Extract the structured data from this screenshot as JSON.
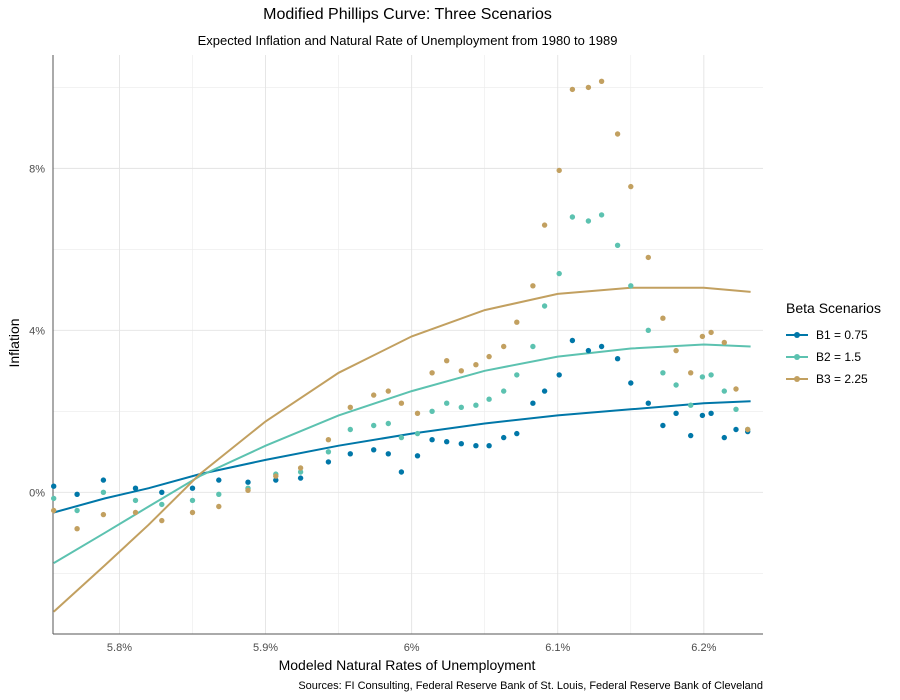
{
  "chart_data": {
    "type": "scatter",
    "title": "Modified Phillips Curve: Three Scenarios",
    "subtitle": "Expected Inflation and Natural Rate of Unemployment from 1980 to 1989",
    "xlabel": "Modeled Natural Rates of Unemployment",
    "ylabel": "Inflation",
    "caption": "Sources: FI Consulting, Federal Reserve Bank of St. Louis, Federal Reserve Bank of Cleveland",
    "xlim": [
      5.7545,
      6.2405
    ],
    "ylim": [
      -3.5,
      10.8
    ],
    "x_ticks": [
      5.8,
      5.9,
      6.0,
      6.1,
      6.2
    ],
    "x_tick_labels": [
      "5.8%",
      "5.9%",
      "6%",
      "6.1%",
      "6.2%"
    ],
    "y_ticks": [
      0,
      4,
      8
    ],
    "y_tick_labels": [
      "0%",
      "4%",
      "8%"
    ],
    "grid": true,
    "legend": {
      "title": "Beta Scenarios",
      "position": "right"
    },
    "x": [
      5.755,
      5.775,
      5.795,
      5.815,
      5.835,
      5.855,
      5.875,
      5.895,
      5.915,
      5.935,
      5.955,
      5.975,
      5.995,
      6.005,
      6.015,
      6.025,
      6.035,
      6.045,
      6.055,
      6.065,
      6.075,
      6.085,
      6.095,
      6.105,
      6.115,
      6.125,
      6.135,
      6.145,
      6.155,
      6.165,
      6.175,
      6.185,
      6.195,
      6.205,
      6.215,
      6.225,
      6.232
    ],
    "series": [
      {
        "name": "B1 = 0.75",
        "color": "#0077a8",
        "points": [
          [
            5.755,
            0.15
          ],
          [
            5.771,
            -0.05
          ],
          [
            5.789,
            0.3
          ],
          [
            5.811,
            0.1
          ],
          [
            5.829,
            0.0
          ],
          [
            5.85,
            0.1
          ],
          [
            5.868,
            0.3
          ],
          [
            5.888,
            0.25
          ],
          [
            5.907,
            0.3
          ],
          [
            5.924,
            0.35
          ],
          [
            5.943,
            0.75
          ],
          [
            5.958,
            0.95
          ],
          [
            5.974,
            1.05
          ],
          [
            5.984,
            0.95
          ],
          [
            5.993,
            0.5
          ],
          [
            6.004,
            0.9
          ],
          [
            6.014,
            1.3
          ],
          [
            6.024,
            1.25
          ],
          [
            6.034,
            1.2
          ],
          [
            6.044,
            1.15
          ],
          [
            6.053,
            1.15
          ],
          [
            6.063,
            1.35
          ],
          [
            6.072,
            1.45
          ],
          [
            6.083,
            2.2
          ],
          [
            6.091,
            2.5
          ],
          [
            6.101,
            2.9
          ],
          [
            6.11,
            3.75
          ],
          [
            6.121,
            3.5
          ],
          [
            6.13,
            3.6
          ],
          [
            6.141,
            3.3
          ],
          [
            6.15,
            2.7
          ],
          [
            6.162,
            2.2
          ],
          [
            6.172,
            1.65
          ],
          [
            6.181,
            1.95
          ],
          [
            6.191,
            1.4
          ],
          [
            6.199,
            1.9
          ],
          [
            6.205,
            1.95
          ],
          [
            6.214,
            1.35
          ],
          [
            6.222,
            1.55
          ],
          [
            6.23,
            1.5
          ]
        ],
        "fit": [
          [
            5.755,
            -0.5
          ],
          [
            5.79,
            -0.15
          ],
          [
            5.82,
            0.1
          ],
          [
            5.855,
            0.45
          ],
          [
            5.9,
            0.8
          ],
          [
            5.95,
            1.15
          ],
          [
            6.0,
            1.45
          ],
          [
            6.05,
            1.7
          ],
          [
            6.1,
            1.9
          ],
          [
            6.15,
            2.05
          ],
          [
            6.2,
            2.2
          ],
          [
            6.232,
            2.25
          ]
        ]
      },
      {
        "name": "B2 = 1.5",
        "color": "#5cc2b0",
        "points": [
          [
            5.755,
            -0.15
          ],
          [
            5.771,
            -0.45
          ],
          [
            5.789,
            0.0
          ],
          [
            5.811,
            -0.2
          ],
          [
            5.829,
            -0.3
          ],
          [
            5.85,
            -0.2
          ],
          [
            5.868,
            -0.05
          ],
          [
            5.888,
            0.1
          ],
          [
            5.907,
            0.45
          ],
          [
            5.924,
            0.5
          ],
          [
            5.943,
            1.0
          ],
          [
            5.958,
            1.55
          ],
          [
            5.974,
            1.65
          ],
          [
            5.984,
            1.7
          ],
          [
            5.993,
            1.35
          ],
          [
            6.004,
            1.45
          ],
          [
            6.014,
            2.0
          ],
          [
            6.024,
            2.2
          ],
          [
            6.034,
            2.1
          ],
          [
            6.044,
            2.15
          ],
          [
            6.053,
            2.3
          ],
          [
            6.063,
            2.5
          ],
          [
            6.072,
            2.9
          ],
          [
            6.083,
            3.6
          ],
          [
            6.091,
            4.6
          ],
          [
            6.101,
            5.4
          ],
          [
            6.11,
            6.8
          ],
          [
            6.121,
            6.7
          ],
          [
            6.13,
            6.85
          ],
          [
            6.141,
            6.1
          ],
          [
            6.15,
            5.1
          ],
          [
            6.162,
            4.0
          ],
          [
            6.172,
            2.95
          ],
          [
            6.181,
            2.65
          ],
          [
            6.191,
            2.15
          ],
          [
            6.199,
            2.85
          ],
          [
            6.205,
            2.9
          ],
          [
            6.214,
            2.5
          ],
          [
            6.222,
            2.05
          ],
          [
            6.23,
            1.55
          ]
        ],
        "fit": [
          [
            5.755,
            -1.75
          ],
          [
            5.79,
            -1.0
          ],
          [
            5.82,
            -0.35
          ],
          [
            5.855,
            0.4
          ],
          [
            5.9,
            1.15
          ],
          [
            5.95,
            1.9
          ],
          [
            6.0,
            2.5
          ],
          [
            6.05,
            3.0
          ],
          [
            6.1,
            3.35
          ],
          [
            6.15,
            3.55
          ],
          [
            6.2,
            3.65
          ],
          [
            6.232,
            3.6
          ]
        ]
      },
      {
        "name": "B3 = 2.25",
        "color": "#c2a060",
        "points": [
          [
            5.755,
            -0.45
          ],
          [
            5.771,
            -0.9
          ],
          [
            5.789,
            -0.55
          ],
          [
            5.811,
            -0.5
          ],
          [
            5.829,
            -0.7
          ],
          [
            5.85,
            -0.5
          ],
          [
            5.868,
            -0.35
          ],
          [
            5.888,
            0.05
          ],
          [
            5.907,
            0.4
          ],
          [
            5.924,
            0.6
          ],
          [
            5.943,
            1.3
          ],
          [
            5.958,
            2.1
          ],
          [
            5.974,
            2.4
          ],
          [
            5.984,
            2.5
          ],
          [
            5.993,
            2.2
          ],
          [
            6.004,
            1.95
          ],
          [
            6.014,
            2.95
          ],
          [
            6.024,
            3.25
          ],
          [
            6.034,
            3.0
          ],
          [
            6.044,
            3.15
          ],
          [
            6.053,
            3.35
          ],
          [
            6.063,
            3.6
          ],
          [
            6.072,
            4.2
          ],
          [
            6.083,
            5.1
          ],
          [
            6.091,
            6.6
          ],
          [
            6.101,
            7.95
          ],
          [
            6.11,
            9.95
          ],
          [
            6.121,
            10.0
          ],
          [
            6.13,
            10.15
          ],
          [
            6.141,
            8.85
          ],
          [
            6.15,
            7.55
          ],
          [
            6.162,
            5.8
          ],
          [
            6.172,
            4.3
          ],
          [
            6.181,
            3.5
          ],
          [
            6.191,
            2.95
          ],
          [
            6.199,
            3.85
          ],
          [
            6.205,
            3.95
          ],
          [
            6.214,
            3.7
          ],
          [
            6.222,
            2.55
          ],
          [
            6.23,
            1.55
          ]
        ],
        "fit": [
          [
            5.755,
            -2.95
          ],
          [
            5.79,
            -1.8
          ],
          [
            5.82,
            -0.8
          ],
          [
            5.855,
            0.45
          ],
          [
            5.9,
            1.75
          ],
          [
            5.95,
            2.95
          ],
          [
            6.0,
            3.85
          ],
          [
            6.05,
            4.5
          ],
          [
            6.1,
            4.9
          ],
          [
            6.15,
            5.05
          ],
          [
            6.2,
            5.05
          ],
          [
            6.232,
            4.95
          ]
        ]
      }
    ]
  }
}
